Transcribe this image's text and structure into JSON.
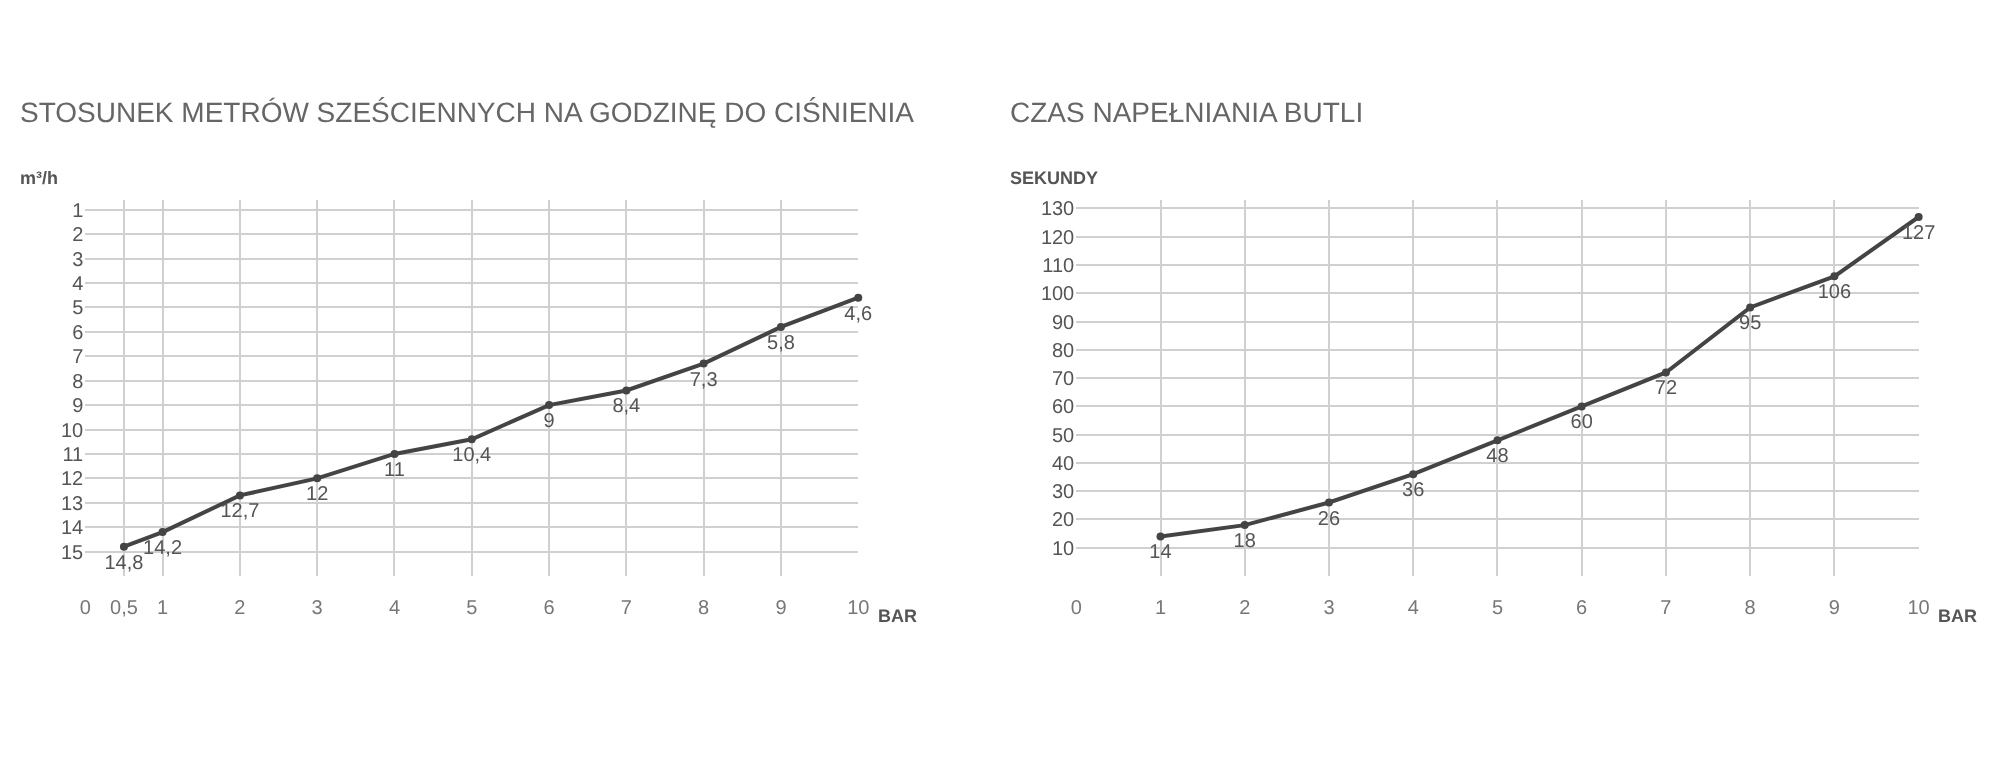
{
  "chart_data": [
    {
      "type": "line",
      "title": "STOSUNEK METRÓW SZEŚCIENNYCH NA GODZINĘ DO CIŚNIENIA",
      "ylabel": "m³/h",
      "xlabel": "BAR",
      "x": [
        0.5,
        1,
        2,
        3,
        4,
        5,
        6,
        7,
        8,
        9,
        10
      ],
      "series": [
        {
          "color": "#444444",
          "values": [
            14.8,
            14.2,
            12.7,
            12,
            11,
            10.4,
            9,
            8.4,
            7.3,
            5.8,
            4.6
          ],
          "value_labels": [
            "14,8",
            "14,2",
            "12,7",
            "12",
            "11",
            "10,4",
            "9",
            "8,4",
            "7,3",
            "5,8",
            "4,6"
          ]
        }
      ],
      "xlim": [
        0,
        10
      ],
      "xticks": [
        0,
        {
          "value": 0.5,
          "label": "0,5"
        },
        1,
        2,
        3,
        4,
        5,
        6,
        7,
        8,
        9,
        10
      ],
      "ylim": [
        16,
        0.6
      ],
      "yticks": [
        1,
        2,
        3,
        4,
        5,
        6,
        7,
        8,
        9,
        10,
        11,
        12,
        13,
        14,
        15
      ],
      "grid": true,
      "marker": "circle"
    },
    {
      "type": "line",
      "title": "CZAS NAPEŁNIANIA BUTLI",
      "ylabel": "SEKUNDY",
      "xlabel": "BAR",
      "x": [
        1,
        2,
        3,
        4,
        5,
        6,
        7,
        8,
        9,
        10
      ],
      "series": [
        {
          "color": "#444444",
          "values": [
            14,
            18,
            26,
            36,
            48,
            60,
            72,
            95,
            106,
            127
          ]
        }
      ],
      "data_labels": true,
      "xlim": [
        0,
        10
      ],
      "xticks": [
        0,
        1,
        2,
        3,
        4,
        5,
        6,
        7,
        8,
        9,
        10
      ],
      "ylim": [
        0,
        133
      ],
      "yticks": [
        10,
        20,
        30,
        40,
        50,
        60,
        70,
        80,
        90,
        100,
        110,
        120,
        130
      ],
      "grid": true,
      "marker": "circle"
    }
  ]
}
